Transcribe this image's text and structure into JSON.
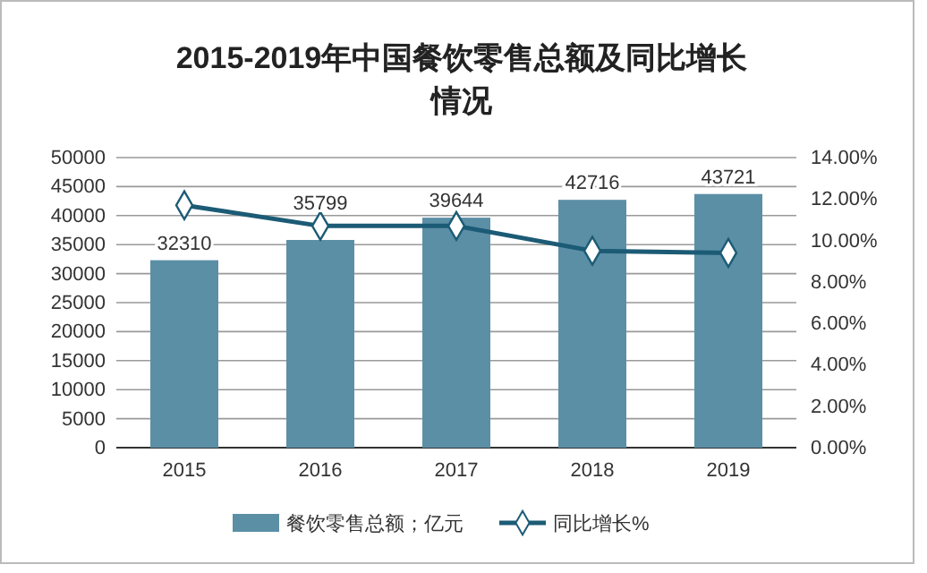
{
  "chart_data": {
    "type": "bar",
    "title": "2015-2019年中国餐饮零售总额及同比增长情况",
    "categories": [
      "2015",
      "2016",
      "2017",
      "2018",
      "2019"
    ],
    "series": [
      {
        "name": "餐饮零售总额；亿元",
        "color": "#5b8fa6",
        "values": [
          32310,
          35799,
          39644,
          42716,
          43721
        ],
        "value_labels": [
          "32310",
          "35799",
          "39644",
          "42716",
          "43721"
        ]
      },
      {
        "name": "同比增长%",
        "type": "line",
        "axis": "y2",
        "color": "#1c5b75",
        "marker": "diamond",
        "values": [
          11.7,
          10.7,
          10.7,
          9.5,
          9.4
        ]
      }
    ],
    "ylim": [
      0,
      50000
    ],
    "yticks": [
      0,
      5000,
      10000,
      15000,
      20000,
      25000,
      30000,
      35000,
      40000,
      45000,
      50000
    ],
    "y2lim": [
      0,
      14
    ],
    "y2ticks": [
      {
        "value": 0,
        "label": "0.00%"
      },
      {
        "value": 2,
        "label": "2.00%"
      },
      {
        "value": 4,
        "label": "4.00%"
      },
      {
        "value": 6,
        "label": "6.00%"
      },
      {
        "value": 8,
        "label": "8.00%"
      },
      {
        "value": 10,
        "label": "10.00%"
      },
      {
        "value": 12,
        "label": "12.00%"
      },
      {
        "value": 14,
        "label": "14.00%"
      }
    ],
    "grid": "y",
    "legend": "bottom"
  }
}
